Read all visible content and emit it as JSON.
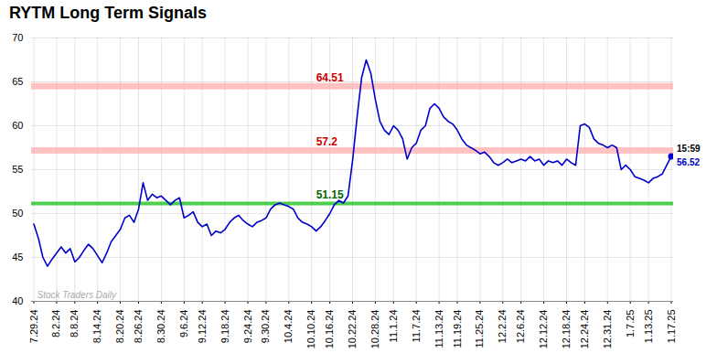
{
  "chart_data": {
    "type": "line",
    "title": "RYTM Long Term Signals",
    "color": "#0000cc",
    "categories": [
      "7.29.24",
      null,
      null,
      null,
      null,
      "8.2.24",
      null,
      null,
      null,
      "8.8.24",
      null,
      null,
      null,
      null,
      "8.14.24",
      null,
      null,
      null,
      null,
      "8.20.24",
      null,
      null,
      null,
      "8.26.24",
      null,
      null,
      null,
      null,
      "8.30.24",
      null,
      null,
      null,
      null,
      "9.6.24",
      null,
      null,
      null,
      "9.12.24",
      null,
      null,
      null,
      null,
      "9.18.24",
      null,
      null,
      null,
      null,
      "9.24.24",
      null,
      null,
      null,
      "9.30.24",
      null,
      null,
      null,
      null,
      "10.4.24",
      null,
      null,
      null,
      null,
      "10.10.24",
      null,
      null,
      null,
      "10.16.24",
      null,
      null,
      null,
      null,
      "10.22.24",
      null,
      null,
      null,
      null,
      "10.28.24",
      null,
      null,
      null,
      "11.1.24",
      null,
      null,
      null,
      null,
      "11.7.24",
      null,
      null,
      null,
      null,
      "11.13.24",
      null,
      null,
      null,
      "11.19.24",
      null,
      null,
      null,
      null,
      "11.25.24",
      null,
      null,
      null,
      null,
      "12.2.24",
      null,
      null,
      null,
      "12.6.24",
      null,
      null,
      null,
      null,
      "12.12.24",
      null,
      null,
      null,
      null,
      "12.18.24",
      null,
      null,
      null,
      "12.24.24",
      null,
      null,
      null,
      null,
      "12.31.24",
      null,
      null,
      null,
      null,
      "1.7.25",
      null,
      null,
      null,
      "1.13.25",
      null,
      null,
      null,
      null,
      "1.17.25"
    ],
    "values": [
      48.8,
      47.2,
      45.0,
      44.0,
      44.8,
      45.5,
      46.2,
      45.5,
      46.0,
      44.5,
      45.0,
      45.8,
      46.5,
      46.0,
      45.2,
      44.4,
      45.5,
      46.8,
      47.5,
      48.2,
      49.5,
      49.8,
      49.0,
      50.5,
      53.5,
      51.5,
      52.2,
      51.8,
      52.0,
      51.5,
      51.0,
      51.5,
      51.8,
      49.5,
      49.8,
      50.2,
      49.0,
      48.5,
      48.8,
      47.5,
      48.0,
      47.8,
      48.2,
      49.0,
      49.5,
      49.8,
      49.2,
      48.8,
      48.5,
      49.0,
      49.2,
      49.5,
      50.5,
      51.0,
      51.2,
      51.0,
      50.8,
      50.5,
      49.5,
      49.0,
      48.8,
      48.5,
      48.0,
      48.5,
      49.2,
      50.0,
      51.0,
      51.5,
      51.2,
      52.0,
      56.0,
      61.0,
      65.5,
      67.5,
      66.0,
      63.0,
      60.5,
      59.5,
      59.0,
      60.0,
      59.5,
      58.5,
      56.2,
      57.5,
      58.0,
      59.5,
      60.0,
      62.0,
      62.5,
      62.0,
      61.0,
      60.5,
      60.2,
      59.5,
      58.5,
      57.8,
      57.5,
      57.2,
      56.8,
      57.0,
      56.5,
      55.8,
      55.5,
      55.8,
      56.2,
      55.8,
      56.0,
      56.2,
      56.0,
      56.5,
      56.0,
      56.2,
      55.5,
      56.0,
      55.8,
      56.0,
      55.5,
      56.2,
      55.8,
      55.5,
      60.0,
      60.2,
      59.8,
      58.5,
      58.0,
      57.8,
      57.5,
      57.8,
      57.5,
      55.0,
      55.5,
      55.0,
      54.2,
      54.0,
      53.8,
      53.5,
      54.0,
      54.2,
      54.5,
      55.5,
      56.52
    ],
    "ylim": [
      40,
      70
    ],
    "yticks": [
      40,
      45,
      50,
      55,
      60,
      65,
      70
    ],
    "grid": true,
    "reference_lines": [
      {
        "value": 64.51,
        "label": "64.51",
        "color": "#ffaaaa",
        "label_color": "#cc0000"
      },
      {
        "value": 57.2,
        "label": "57.2",
        "color": "#ffaaaa",
        "label_color": "#cc0000"
      },
      {
        "value": 51.15,
        "label": "51.15",
        "color": "#00bb00",
        "label_color": "#006600"
      }
    ],
    "annotations": [
      {
        "text": "15:59",
        "x": "1.17.25",
        "y": 56.52,
        "color": "#000000"
      },
      {
        "text": "56.52",
        "x": "1.17.25",
        "y": 56.52,
        "color": "#0000cc"
      },
      {
        "text": "Stock Traders Daily",
        "color": "#aaaaaa"
      }
    ]
  }
}
